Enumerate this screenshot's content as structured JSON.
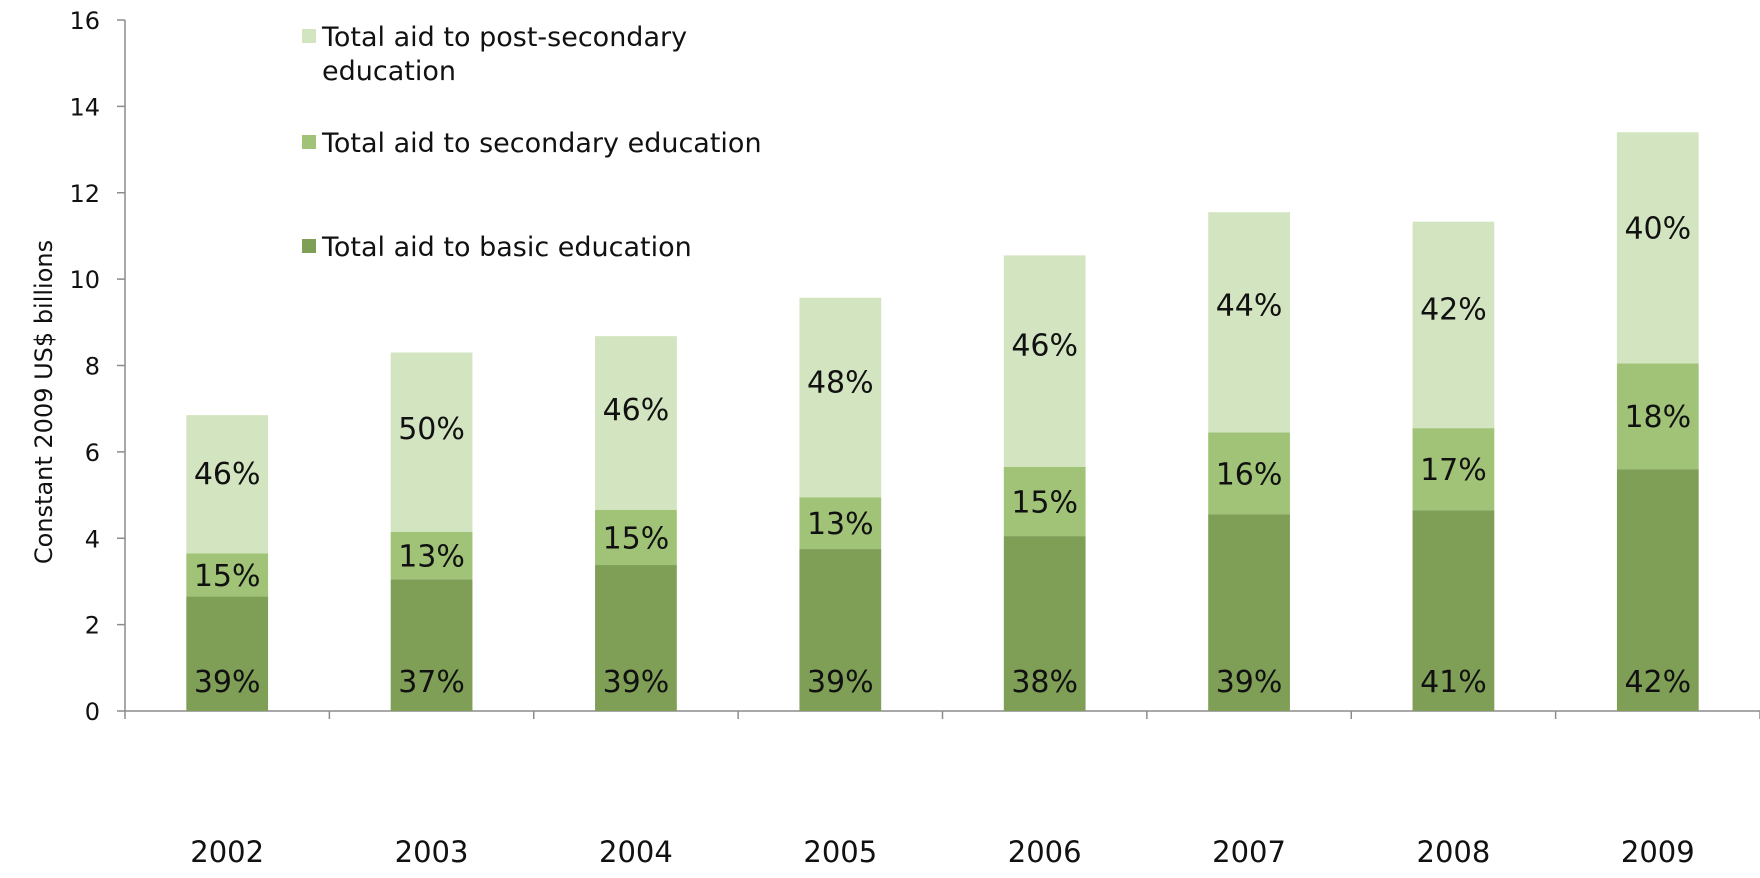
{
  "chart_data": {
    "type": "bar",
    "stacked": true,
    "ylabel": "Constant 2009 US$ billions",
    "xlabel": "",
    "ylim": [
      0,
      16
    ],
    "yticks": [
      0,
      2,
      4,
      6,
      8,
      10,
      12,
      14,
      16
    ],
    "grid": false,
    "legend_placement": "top-left",
    "categories": [
      "2002",
      "2003",
      "2004",
      "2005",
      "2006",
      "2007",
      "2008",
      "2009"
    ],
    "series": [
      {
        "name": "Total aid to basic education",
        "color": "#7f9f57",
        "values": [
          2.65,
          3.05,
          3.38,
          3.75,
          4.05,
          4.55,
          4.65,
          5.6
        ],
        "labels": [
          "39%",
          "37%",
          "39%",
          "39%",
          "38%",
          "39%",
          "41%",
          "42%"
        ]
      },
      {
        "name": "Total aid to secondary education",
        "color": "#a0c377",
        "values": [
          1.0,
          1.1,
          1.28,
          1.2,
          1.6,
          1.9,
          1.9,
          2.45
        ],
        "labels": [
          "15%",
          "13%",
          "15%",
          "13%",
          "15%",
          "16%",
          "17%",
          "18%"
        ]
      },
      {
        "name": "Total aid to post-secondary education",
        "color": "#d3e4c0",
        "values": [
          3.2,
          4.15,
          4.02,
          4.62,
          4.9,
          5.1,
          4.78,
          5.35
        ],
        "labels": [
          "46%",
          "50%",
          "46%",
          "48%",
          "46%",
          "44%",
          "42%",
          "40%"
        ]
      }
    ],
    "legend": [
      {
        "text": [
          "Total aid to post-secondary",
          "education"
        ],
        "color": "#d3e4c0"
      },
      {
        "text": [
          "Total aid to secondary education"
        ],
        "color": "#a0c377"
      },
      {
        "text": [
          "Total aid to basic education"
        ],
        "color": "#7f9f57"
      }
    ]
  }
}
